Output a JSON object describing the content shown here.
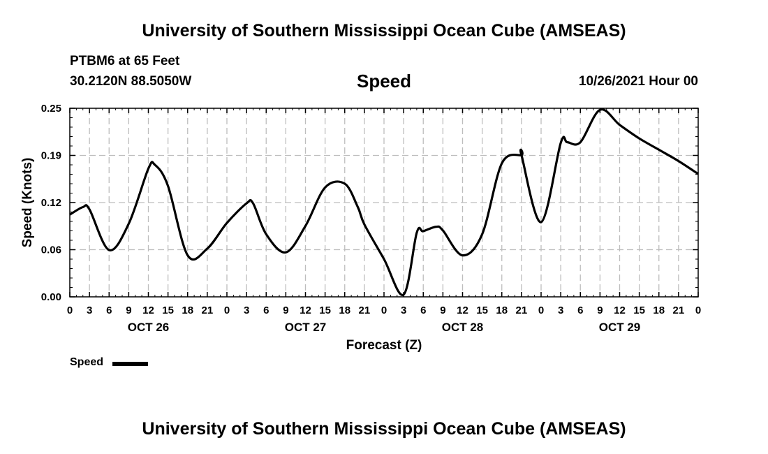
{
  "header": {
    "main_title": "University of Southern Mississippi Ocean Cube (AMSEAS)",
    "station": "PTBM6 at 65 Feet",
    "coordinates": "30.2120N  88.5050W",
    "issued": "10/26/2021 Hour 00"
  },
  "footer": {
    "title": "University of Southern Mississippi Ocean Cube (AMSEAS)"
  },
  "chart_data": {
    "type": "line",
    "title": "Speed",
    "xlabel": "Forecast (Z)",
    "ylabel": "Speed (Knots)",
    "xlim": [
      0,
      96
    ],
    "ylim": [
      0,
      0.25
    ],
    "yticks": [
      "0.00",
      "0.06",
      "0.12",
      "0.19",
      "0.25"
    ],
    "ytick_values": [
      0,
      0.0625,
      0.125,
      0.1875,
      0.25
    ],
    "xtick_labels": [
      "0",
      "3",
      "6",
      "9",
      "12",
      "15",
      "18",
      "21",
      "0",
      "3",
      "6",
      "9",
      "12",
      "15",
      "18",
      "21",
      "0",
      "3",
      "6",
      "9",
      "12",
      "15",
      "18",
      "21",
      "0",
      "3",
      "6",
      "9",
      "12",
      "15",
      "18",
      "21",
      "0"
    ],
    "day_labels": [
      {
        "label": "OCT 26",
        "hour": 12
      },
      {
        "label": "OCT 27",
        "hour": 36
      },
      {
        "label": "OCT 28",
        "hour": 60
      },
      {
        "label": "OCT 29",
        "hour": 84
      }
    ],
    "grid": true,
    "series": [
      {
        "name": "Speed",
        "x": [
          0,
          2,
          3,
          6,
          9,
          12,
          13,
          15,
          18,
          21,
          24,
          27,
          28,
          30,
          33,
          36,
          39,
          42,
          44,
          45,
          48,
          51,
          53,
          54,
          56,
          57,
          60,
          63,
          66,
          69,
          69,
          72,
          75,
          76,
          78,
          81,
          84,
          87,
          90,
          93,
          96
        ],
        "values": [
          0.109,
          0.119,
          0.116,
          0.062,
          0.097,
          0.17,
          0.175,
          0.147,
          0.055,
          0.064,
          0.098,
          0.124,
          0.124,
          0.083,
          0.059,
          0.094,
          0.145,
          0.15,
          0.119,
          0.096,
          0.05,
          0.003,
          0.085,
          0.087,
          0.093,
          0.088,
          0.055,
          0.083,
          0.177,
          0.188,
          0.188,
          0.099,
          0.204,
          0.205,
          0.205,
          0.248,
          0.228,
          0.21,
          0.195,
          0.18,
          0.163
        ]
      }
    ],
    "legend": {
      "label": "Speed",
      "position": "bottom-left"
    }
  }
}
